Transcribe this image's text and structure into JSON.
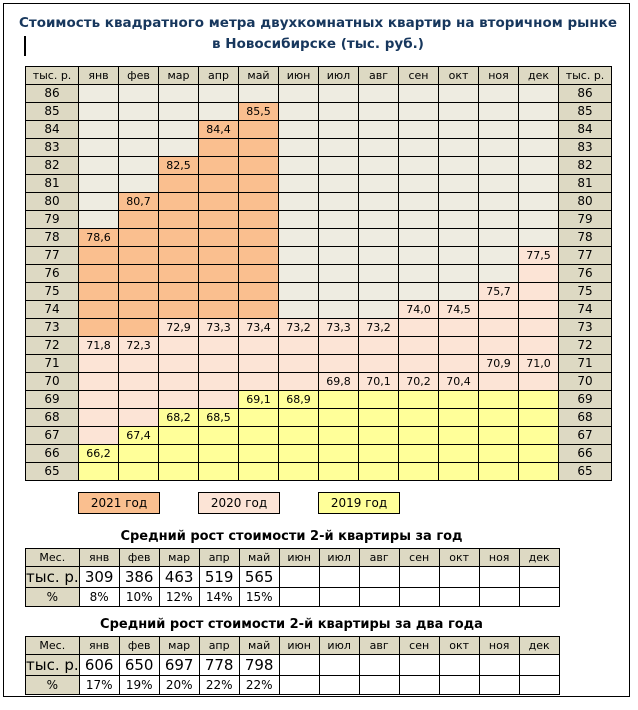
{
  "page": {
    "title_line1": "Стоимость квадратного метра двухкомнатных квартир на вторичном рынке",
    "title_line2": "в Новосибирске (тыс. руб.)"
  },
  "colors": {
    "year2021": "#fabf8f",
    "year2020": "#fce4d6",
    "year2019": "#ffff99",
    "header_bg": "#ddd9c3",
    "empty_cell_bg": "#eeece1",
    "title_text": "#17375d"
  },
  "months": [
    "янв",
    "фев",
    "мар",
    "апр",
    "май",
    "июн",
    "июл",
    "авг",
    "сен",
    "окт",
    "ноя",
    "дек"
  ],
  "grid": {
    "corner_label": "тыс. р.",
    "rows": [
      {
        "label": "86",
        "cells": [
          "",
          "",
          "",
          "",
          "",
          "",
          "",
          "",
          "",
          "",
          "",
          ""
        ]
      },
      {
        "label": "85",
        "cells": [
          "",
          "",
          "",
          "",
          "o:85,5",
          "",
          "",
          "",
          "",
          "",
          "",
          ""
        ]
      },
      {
        "label": "84",
        "cells": [
          "",
          "",
          "",
          "o:84,4",
          "o",
          "",
          "",
          "",
          "",
          "",
          "",
          ""
        ]
      },
      {
        "label": "83",
        "cells": [
          "",
          "",
          "",
          "o",
          "o",
          "",
          "",
          "",
          "",
          "",
          "",
          ""
        ]
      },
      {
        "label": "82",
        "cells": [
          "",
          "",
          "o:82,5",
          "o",
          "o",
          "",
          "",
          "",
          "",
          "",
          "",
          ""
        ]
      },
      {
        "label": "81",
        "cells": [
          "",
          "",
          "o",
          "o",
          "o",
          "",
          "",
          "",
          "",
          "",
          "",
          ""
        ]
      },
      {
        "label": "80",
        "cells": [
          "",
          "o:80,7",
          "o",
          "o",
          "o",
          "",
          "",
          "",
          "",
          "",
          "",
          ""
        ]
      },
      {
        "label": "79",
        "cells": [
          "",
          "o",
          "o",
          "o",
          "o",
          "",
          "",
          "",
          "",
          "",
          "",
          ""
        ]
      },
      {
        "label": "78",
        "cells": [
          "o:78,6",
          "o",
          "o",
          "o",
          "o",
          "",
          "",
          "",
          "",
          "",
          "",
          ""
        ]
      },
      {
        "label": "77",
        "cells": [
          "o",
          "o",
          "o",
          "o",
          "o",
          "",
          "",
          "",
          "",
          "",
          "",
          "p:77,5"
        ]
      },
      {
        "label": "76",
        "cells": [
          "o",
          "o",
          "o",
          "o",
          "o",
          "",
          "",
          "",
          "",
          "",
          "",
          "p"
        ]
      },
      {
        "label": "75",
        "cells": [
          "o",
          "o",
          "o",
          "o",
          "o",
          "",
          "",
          "",
          "",
          "",
          "p:75,7",
          "p"
        ]
      },
      {
        "label": "74",
        "cells": [
          "o",
          "o",
          "o",
          "o",
          "o",
          "",
          "",
          "",
          "p:74,0",
          "p:74,5",
          "p",
          "p"
        ]
      },
      {
        "label": "73",
        "cells": [
          "o",
          "o",
          "p:72,9",
          "p:73,3",
          "p:73,4",
          "p:73,2",
          "p:73,3",
          "p:73,2",
          "p",
          "p",
          "p",
          "p"
        ]
      },
      {
        "label": "72",
        "cells": [
          "p:71,8",
          "p:72,3",
          "p",
          "p",
          "p",
          "p",
          "p",
          "p",
          "p",
          "p",
          "p",
          "p"
        ]
      },
      {
        "label": "71",
        "cells": [
          "p",
          "p",
          "p",
          "p",
          "p",
          "p",
          "p",
          "p",
          "p",
          "p",
          "p:70,9",
          "p:71,0"
        ]
      },
      {
        "label": "70",
        "cells": [
          "p",
          "p",
          "p",
          "p",
          "p",
          "p",
          "p:69,8",
          "p:70,1",
          "p:70,2",
          "p:70,4",
          "p",
          "p"
        ]
      },
      {
        "label": "69",
        "cells": [
          "p",
          "p",
          "p",
          "p",
          "y:69,1",
          "y:68,9",
          "y",
          "y",
          "y",
          "y",
          "y",
          "y"
        ]
      },
      {
        "label": "68",
        "cells": [
          "p",
          "p",
          "y:68,2",
          "y:68,5",
          "y",
          "y",
          "y",
          "y",
          "y",
          "y",
          "y",
          "y"
        ]
      },
      {
        "label": "67",
        "cells": [
          "p",
          "y:67,4",
          "y",
          "y",
          "y",
          "y",
          "y",
          "y",
          "y",
          "y",
          "y",
          "y"
        ]
      },
      {
        "label": "66",
        "cells": [
          "y:66,2",
          "y",
          "y",
          "y",
          "y",
          "y",
          "y",
          "y",
          "y",
          "y",
          "y",
          "y"
        ]
      },
      {
        "label": "65",
        "cells": [
          "y",
          "y",
          "y",
          "y",
          "y",
          "y",
          "y",
          "y",
          "y",
          "y",
          "y",
          "y"
        ]
      }
    ]
  },
  "legend": [
    {
      "label": "2021 год",
      "color_key": "year2021"
    },
    {
      "label": "2020 год",
      "color_key": "year2020"
    },
    {
      "label": "2019 год",
      "color_key": "year2019"
    }
  ],
  "tables": [
    {
      "title": "Средний рост стоимости 2-й квартиры за год",
      "corner_label": "Мес.",
      "rows": [
        {
          "label": "тыс. р.",
          "values": [
            "309",
            "386",
            "463",
            "519",
            "565",
            "",
            "",
            "",
            "",
            "",
            "",
            ""
          ]
        },
        {
          "label": "%",
          "values": [
            "8%",
            "10%",
            "12%",
            "14%",
            "15%",
            "",
            "",
            "",
            "",
            "",
            "",
            ""
          ]
        }
      ]
    },
    {
      "title": "Средний рост стоимости 2-й квартиры за два года",
      "corner_label": "Мес.",
      "rows": [
        {
          "label": "тыс. р.",
          "values": [
            "606",
            "650",
            "697",
            "778",
            "798",
            "",
            "",
            "",
            "",
            "",
            "",
            ""
          ]
        },
        {
          "label": "%",
          "values": [
            "17%",
            "19%",
            "20%",
            "22%",
            "22%",
            "",
            "",
            "",
            "",
            "",
            "",
            ""
          ]
        }
      ]
    }
  ],
  "chart_data": [
    {
      "type": "bar",
      "title": "Стоимость квадратного метра двухкомнатных квартир на вторичном рынке в Новосибирске (тыс. руб.)",
      "categories": [
        "янв",
        "фев",
        "мар",
        "апр",
        "май",
        "июн",
        "июл",
        "авг",
        "сен",
        "окт",
        "ноя",
        "дек"
      ],
      "series": [
        {
          "name": "2021 год",
          "color": "#fabf8f",
          "values": [
            78.6,
            80.7,
            82.5,
            84.4,
            85.5,
            null,
            null,
            null,
            null,
            null,
            null,
            null
          ]
        },
        {
          "name": "2020 год",
          "color": "#fce4d6",
          "values": [
            71.8,
            72.3,
            72.9,
            73.3,
            73.4,
            73.2,
            73.3,
            73.2,
            74.0,
            74.5,
            75.7,
            77.5
          ]
        },
        {
          "name": "2019 год",
          "color": "#ffff99",
          "values": [
            66.2,
            67.4,
            68.2,
            68.5,
            69.1,
            68.9,
            69.8,
            70.1,
            70.2,
            70.4,
            70.9,
            71.0
          ]
        }
      ],
      "xlabel": "",
      "ylabel": "тыс. р.",
      "ylim": [
        65,
        86
      ],
      "grid": true,
      "legend_position": "bottom"
    },
    {
      "type": "table",
      "title": "Средний рост стоимости 2-й квартиры за год",
      "categories": [
        "янв",
        "фев",
        "мар",
        "апр",
        "май"
      ],
      "series": [
        {
          "name": "тыс. р.",
          "values": [
            309,
            386,
            463,
            519,
            565
          ]
        },
        {
          "name": "%",
          "values": [
            "8%",
            "10%",
            "12%",
            "14%",
            "15%"
          ]
        }
      ]
    },
    {
      "type": "table",
      "title": "Средний рост стоимости 2-й квартиры за два года",
      "categories": [
        "янв",
        "фев",
        "мар",
        "апр",
        "май"
      ],
      "series": [
        {
          "name": "тыс. р.",
          "values": [
            606,
            650,
            697,
            778,
            798
          ]
        },
        {
          "name": "%",
          "values": [
            "17%",
            "19%",
            "20%",
            "22%",
            "22%"
          ]
        }
      ]
    }
  ]
}
